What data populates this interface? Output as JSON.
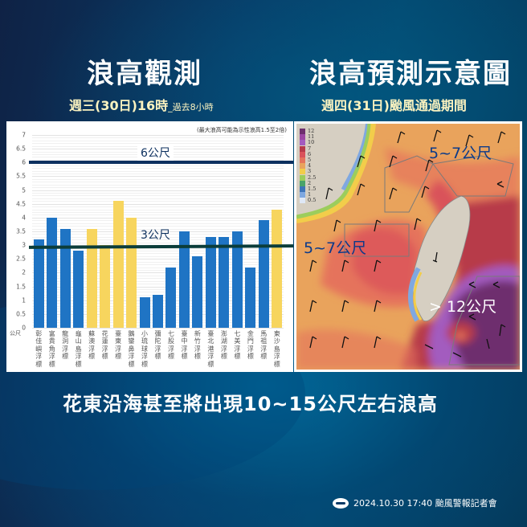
{
  "header": {
    "left_title": "浪高觀測",
    "left_subtitle": "週三(30日)16時",
    "left_subtitle_small": "_過去8小時",
    "right_title": "浪高預測示意圖",
    "right_subtitle": "週四(31日)颱風通過期間"
  },
  "chart": {
    "note": "(最大浪高可能為示性浪高1.5至2倍)",
    "y_unit": "公尺",
    "ref_6_label": "6公尺",
    "ref_3_label": "3公尺",
    "y_ticks": [
      "0",
      "0.5",
      "1",
      "1.5",
      "2",
      "2.5",
      "3",
      "3.5",
      "4",
      "4.5",
      "5",
      "5.5",
      "6",
      "6.5",
      "7"
    ],
    "colors": {
      "blue": "#1f74c4",
      "yellow": "#f7d55e",
      "ref_line": "#0c2f5e"
    }
  },
  "chart_data": {
    "type": "bar",
    "title": "浪高觀測",
    "subtitle": "週三(30日)16時_過去8小時",
    "ylabel": "公尺",
    "ylim": [
      0,
      7
    ],
    "grid": true,
    "categories": [
      "彰佳嶼浮標",
      "富貴角浮標",
      "龍洞浮標",
      "龜山島浮標",
      "蘇澳浮標",
      "花蓮浮標",
      "臺東浮標",
      "鵝鑾鼻浮標",
      "小琉球浮標",
      "彌陀浮標",
      "七股浮標",
      "臺中浮標",
      "新竹浮標",
      "臺北港浮標",
      "澎湖浮標",
      "七美浮標",
      "金門浮標",
      "馬祖浮標",
      "東沙島浮標"
    ],
    "values": [
      3.2,
      4.0,
      3.6,
      2.8,
      3.6,
      3.0,
      4.6,
      4.0,
      1.1,
      1.2,
      2.2,
      3.5,
      2.6,
      3.3,
      3.3,
      3.5,
      2.2,
      3.9,
      4.3
    ],
    "bar_colors": [
      "blue",
      "blue",
      "blue",
      "blue",
      "yellow",
      "yellow",
      "yellow",
      "yellow",
      "blue",
      "blue",
      "blue",
      "blue",
      "blue",
      "blue",
      "blue",
      "blue",
      "blue",
      "blue",
      "yellow"
    ],
    "reference_lines": [
      {
        "y": 6,
        "label": "6公尺"
      },
      {
        "y": 3,
        "label": "3公尺"
      }
    ],
    "annotation": "(最大浪高可能為示性浪高1.5至2倍)"
  },
  "map": {
    "legend": [
      "12",
      "11",
      "10",
      "7",
      "6",
      "5",
      "4",
      "3",
      "2.5",
      "2",
      "1.5",
      "1",
      "0.5"
    ],
    "legend_colors": [
      "#6e2f6e",
      "#9b47a3",
      "#a35bbf",
      "#b73a4a",
      "#d9525a",
      "#e5735b",
      "#e9a35c",
      "#f2cd4a",
      "#9ccd5c",
      "#4aa36a",
      "#3d74b8",
      "#7fa8e0",
      "#dfe8f6"
    ],
    "label_north": "5~7公尺",
    "label_west": "5~7公尺",
    "label_east": "> 12公尺"
  },
  "bottom": {
    "headline": "花東沿海甚至將出現10~15公尺左右浪高"
  },
  "footer": {
    "text": "2024.10.30 17:40 颱風警報記者會"
  }
}
